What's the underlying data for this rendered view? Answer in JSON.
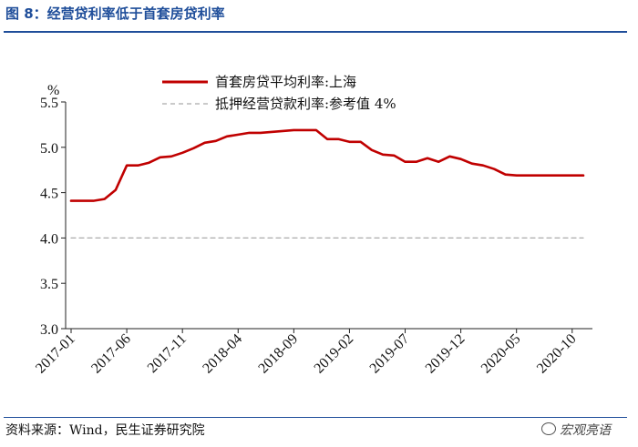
{
  "header": {
    "title": "图 8：经营贷利率低于首套房贷利率"
  },
  "footer": {
    "source": "资料来源：Wind，民生证券研究院",
    "watermark": "宏观亮语"
  },
  "chart_data": {
    "type": "line",
    "ylabel": "%",
    "ylim": [
      3.0,
      5.5
    ],
    "yticks": [
      3.0,
      3.5,
      4.0,
      4.5,
      5.0,
      5.5
    ],
    "ytick_labels": [
      "3.0",
      "3.5",
      "4.0",
      "4.5",
      "5.0",
      "5.5"
    ],
    "xtick_labels": [
      "2017-01",
      "2017-06",
      "2017-11",
      "2018-04",
      "2018-09",
      "2019-02",
      "2019-07",
      "2019-12",
      "2020-05",
      "2020-10"
    ],
    "grid": false,
    "legend_position": "top",
    "series": [
      {
        "name": "首套房贷平均利率:上海",
        "color": "#c00000",
        "style": "solid",
        "x": [
          "2017-01",
          "2017-02",
          "2017-03",
          "2017-04",
          "2017-05",
          "2017-06",
          "2017-07",
          "2017-08",
          "2017-09",
          "2017-10",
          "2017-11",
          "2017-12",
          "2018-01",
          "2018-02",
          "2018-03",
          "2018-04",
          "2018-05",
          "2018-06",
          "2018-07",
          "2018-08",
          "2018-09",
          "2018-10",
          "2018-11",
          "2018-12",
          "2019-01",
          "2019-02",
          "2019-03",
          "2019-04",
          "2019-05",
          "2019-06",
          "2019-07",
          "2019-08",
          "2019-09",
          "2019-10",
          "2019-11",
          "2019-12",
          "2020-01",
          "2020-02",
          "2020-03",
          "2020-04",
          "2020-05",
          "2020-06",
          "2020-07",
          "2020-08",
          "2020-09",
          "2020-10",
          "2020-11"
        ],
        "values": [
          4.41,
          4.41,
          4.41,
          4.43,
          4.53,
          4.8,
          4.8,
          4.83,
          4.89,
          4.9,
          4.94,
          4.99,
          5.05,
          5.07,
          5.12,
          5.14,
          5.16,
          5.16,
          5.17,
          5.18,
          5.19,
          5.19,
          5.19,
          5.09,
          5.09,
          5.06,
          5.06,
          4.97,
          4.92,
          4.91,
          4.84,
          4.84,
          4.88,
          4.84,
          4.9,
          4.87,
          4.82,
          4.8,
          4.76,
          4.7,
          4.69,
          4.69,
          4.69,
          4.69,
          4.69,
          4.69,
          4.69
        ]
      },
      {
        "name": "抵押经营贷款利率:参考值 4%",
        "color": "#aaaaaa",
        "style": "dashed",
        "x": [
          "2017-01",
          "2020-11"
        ],
        "values": [
          4.0,
          4.0
        ]
      }
    ]
  }
}
